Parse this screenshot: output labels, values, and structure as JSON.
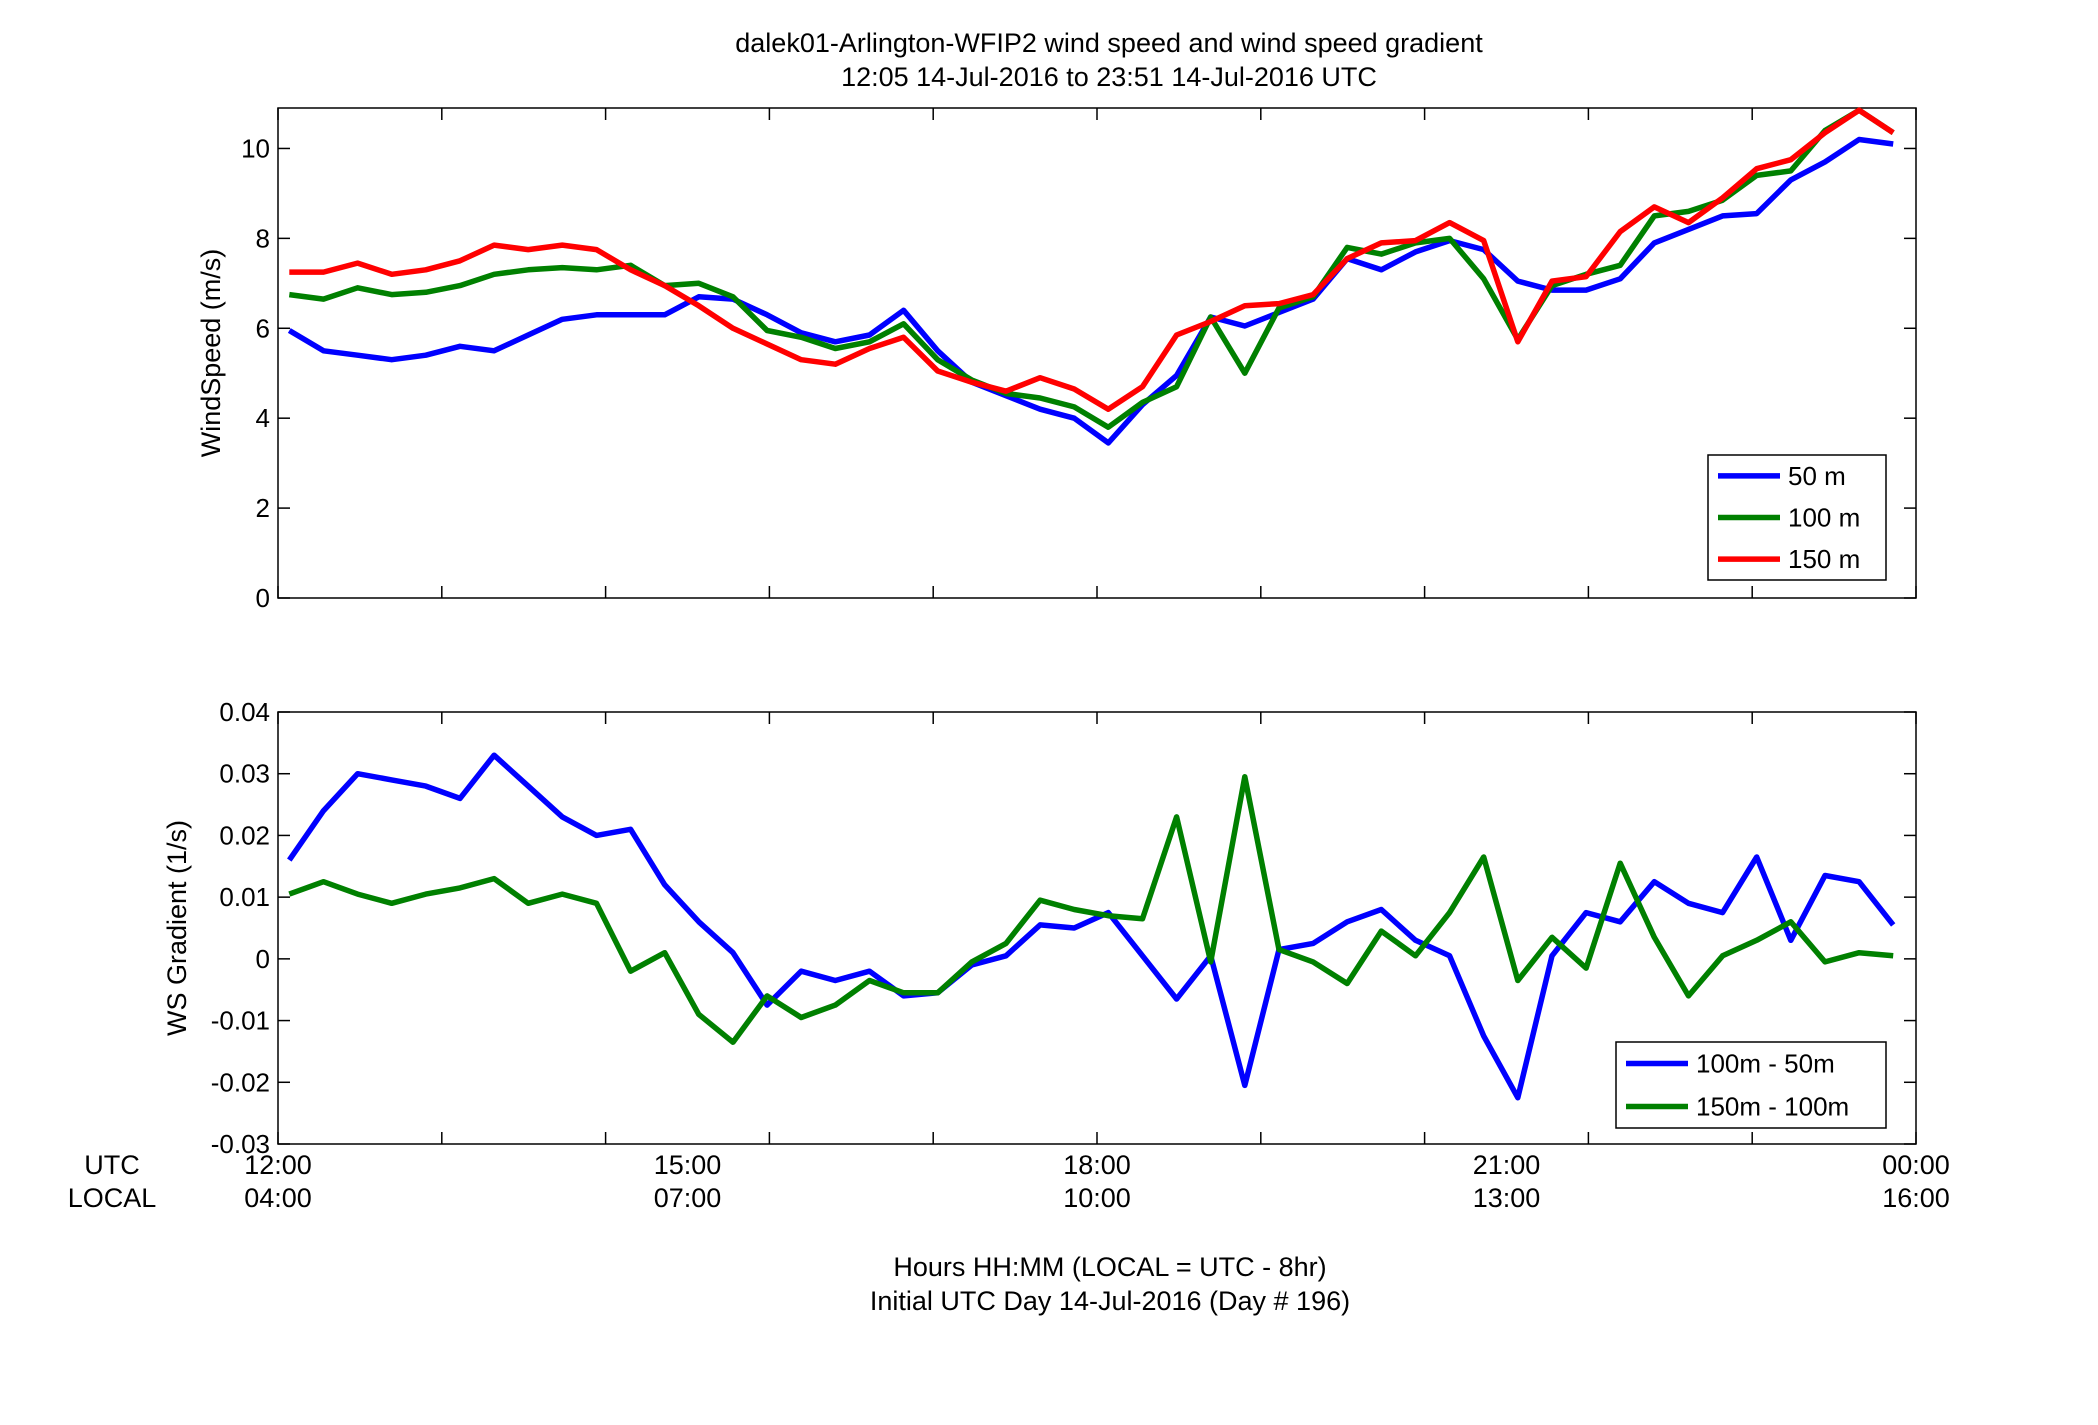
{
  "title": {
    "line1": "dalek01-Arlington-WFIP2  wind speed and wind speed gradient",
    "line2": "12:05 14-Jul-2016 to 23:51 14-Jul-2016  UTC"
  },
  "footer": {
    "utc_label": "UTC",
    "local_label": "LOCAL",
    "line1": "Hours HH:MM  (LOCAL = UTC - 8hr)",
    "line2": "Initial UTC Day 14-Jul-2016 (Day # 196)"
  },
  "x_ticks": {
    "values": [
      12,
      15,
      18,
      21,
      24
    ],
    "utc": [
      "12:00",
      "15:00",
      "18:00",
      "21:00",
      "00:00"
    ],
    "local": [
      "04:00",
      "07:00",
      "10:00",
      "13:00",
      "16:00"
    ]
  },
  "colors": {
    "blue": "#0000ff",
    "green": "#008000",
    "red": "#ff0000"
  },
  "chart_data": [
    {
      "type": "line",
      "ylabel": "WindSpeed (m/s)",
      "xlim": [
        12,
        24
      ],
      "ylim": [
        0,
        10.9
      ],
      "yticks": [
        0,
        2,
        4,
        6,
        8,
        10
      ],
      "legend_position": "bottom-right",
      "x": [
        12.083,
        12.333,
        12.583,
        12.833,
        13.083,
        13.333,
        13.583,
        13.833,
        14.083,
        14.333,
        14.583,
        14.833,
        15.083,
        15.333,
        15.583,
        15.833,
        16.083,
        16.333,
        16.583,
        16.833,
        17.083,
        17.333,
        17.583,
        17.833,
        18.083,
        18.333,
        18.583,
        18.833,
        19.083,
        19.333,
        19.583,
        19.833,
        20.083,
        20.333,
        20.583,
        20.833,
        21.083,
        21.333,
        21.583,
        21.833,
        22.083,
        22.333,
        22.583,
        22.833,
        23.083,
        23.333,
        23.583,
        23.833
      ],
      "series": [
        {
          "name": "50 m",
          "color": "#0000ff",
          "values": [
            5.95,
            5.5,
            5.4,
            5.3,
            5.4,
            5.6,
            5.5,
            5.85,
            6.2,
            6.3,
            6.3,
            6.3,
            6.7,
            6.65,
            6.3,
            5.9,
            5.7,
            5.85,
            6.4,
            5.5,
            4.8,
            4.5,
            4.2,
            4.0,
            3.45,
            4.3,
            4.95,
            6.25,
            6.05,
            6.35,
            6.65,
            7.55,
            7.3,
            7.7,
            7.95,
            7.75,
            7.05,
            6.85,
            6.85,
            7.1,
            7.9,
            8.2,
            8.5,
            8.55,
            9.3,
            9.7,
            10.2,
            10.1
          ]
        },
        {
          "name": "100 m",
          "color": "#008000",
          "values": [
            6.75,
            6.65,
            6.9,
            6.75,
            6.8,
            6.95,
            7.2,
            7.3,
            7.35,
            7.3,
            7.4,
            6.95,
            7.0,
            6.7,
            5.95,
            5.8,
            5.55,
            5.7,
            6.1,
            5.3,
            4.85,
            4.55,
            4.45,
            4.25,
            3.8,
            4.35,
            4.7,
            6.25,
            5.0,
            6.45,
            6.7,
            7.8,
            7.65,
            7.9,
            8.0,
            7.1,
            5.75,
            6.95,
            7.2,
            7.4,
            8.5,
            8.6,
            8.85,
            9.4,
            9.5,
            10.4,
            10.85,
            10.35
          ]
        },
        {
          "name": "150 m",
          "color": "#ff0000",
          "values": [
            7.25,
            7.25,
            7.45,
            7.2,
            7.3,
            7.5,
            7.85,
            7.75,
            7.85,
            7.75,
            7.3,
            6.95,
            6.5,
            6.0,
            5.65,
            5.3,
            5.2,
            5.55,
            5.8,
            5.05,
            4.8,
            4.6,
            4.9,
            4.65,
            4.2,
            4.7,
            5.85,
            6.15,
            6.5,
            6.55,
            6.75,
            7.55,
            7.9,
            7.95,
            8.35,
            7.95,
            5.7,
            7.05,
            7.15,
            8.15,
            8.7,
            8.35,
            8.9,
            9.55,
            9.75,
            10.35,
            10.85,
            10.35
          ]
        }
      ]
    },
    {
      "type": "line",
      "ylabel": "WS Gradient (1/s)",
      "xlim": [
        12,
        24
      ],
      "ylim": [
        -0.03,
        0.04
      ],
      "yticks": [
        -0.03,
        -0.02,
        -0.01,
        0,
        0.01,
        0.02,
        0.03,
        0.04
      ],
      "ytick_labels": [
        "-0.03",
        "-0.02",
        "-0.01",
        "0",
        "0.01",
        "0.02",
        "0.03",
        "0.04"
      ],
      "legend_position": "bottom-right",
      "x": [
        12.083,
        12.333,
        12.583,
        12.833,
        13.083,
        13.333,
        13.583,
        13.833,
        14.083,
        14.333,
        14.583,
        14.833,
        15.083,
        15.333,
        15.583,
        15.833,
        16.083,
        16.333,
        16.583,
        16.833,
        17.083,
        17.333,
        17.583,
        17.833,
        18.083,
        18.333,
        18.583,
        18.833,
        19.083,
        19.333,
        19.583,
        19.833,
        20.083,
        20.333,
        20.583,
        20.833,
        21.083,
        21.333,
        21.583,
        21.833,
        22.083,
        22.333,
        22.583,
        22.833,
        23.083,
        23.333,
        23.583,
        23.833
      ],
      "series": [
        {
          "name": "100m - 50m",
          "color": "#0000ff",
          "values": [
            0.016,
            0.024,
            0.03,
            0.029,
            0.028,
            0.026,
            0.033,
            0.028,
            0.023,
            0.02,
            0.021,
            0.012,
            0.006,
            0.001,
            -0.0075,
            -0.002,
            -0.0035,
            -0.002,
            -0.006,
            -0.0055,
            -0.001,
            0.0005,
            0.0055,
            0.005,
            0.0075,
            0.0005,
            -0.0065,
            0.0005,
            -0.0205,
            0.0015,
            0.0025,
            0.006,
            0.008,
            0.003,
            0.0005,
            -0.0125,
            -0.0225,
            0.0005,
            0.0075,
            0.006,
            0.0125,
            0.009,
            0.0075,
            0.0165,
            0.003,
            0.0135,
            0.0125,
            0.0055
          ]
        },
        {
          "name": "150m - 100m",
          "color": "#008000",
          "values": [
            0.0105,
            0.0125,
            0.0105,
            0.009,
            0.0105,
            0.0115,
            0.013,
            0.009,
            0.0105,
            0.009,
            -0.002,
            0.001,
            -0.009,
            -0.0135,
            -0.006,
            -0.0095,
            -0.0075,
            -0.0035,
            -0.0055,
            -0.0055,
            -0.0005,
            0.0025,
            0.0095,
            0.008,
            0.007,
            0.0065,
            0.023,
            -0.0005,
            0.0295,
            0.0015,
            -0.0005,
            -0.004,
            0.0045,
            0.0005,
            0.0075,
            0.0165,
            -0.0035,
            0.0035,
            -0.0015,
            0.0155,
            0.0035,
            -0.006,
            0.0005,
            0.003,
            0.006,
            -0.0005,
            0.001,
            0.0005
          ]
        }
      ]
    }
  ]
}
